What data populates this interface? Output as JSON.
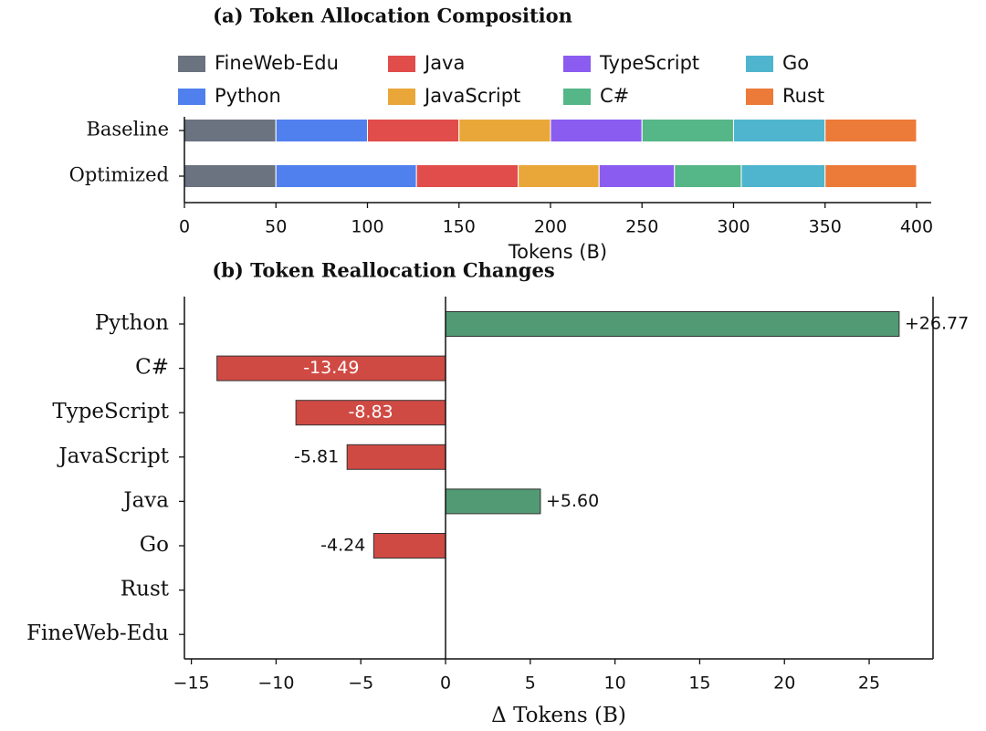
{
  "chart_data": [
    {
      "type": "bar",
      "orientation": "horizontal",
      "stacked": true,
      "title": "(a) Token Allocation Composition",
      "categories": [
        "Baseline",
        "Optimized"
      ],
      "series": [
        {
          "name": "FineWeb-Edu",
          "color": "#6b7280",
          "values": [
            50,
            50
          ]
        },
        {
          "name": "Python",
          "color": "#4f80ee",
          "values": [
            50,
            76.77
          ]
        },
        {
          "name": "Java",
          "color": "#e04d4b",
          "values": [
            50,
            55.6
          ]
        },
        {
          "name": "JavaScript",
          "color": "#e9a73a",
          "values": [
            50,
            44.19
          ]
        },
        {
          "name": "TypeScript",
          "color": "#8b5cf0",
          "values": [
            50,
            41.17
          ]
        },
        {
          "name": "C#",
          "color": "#55b687",
          "values": [
            50,
            36.51
          ]
        },
        {
          "name": "Go",
          "color": "#4fb5cf",
          "values": [
            50,
            45.76
          ]
        },
        {
          "name": "Rust",
          "color": "#ec7a38",
          "values": [
            50,
            50
          ]
        }
      ],
      "xlabel": "Tokens (B)",
      "xlim": [
        0,
        408
      ],
      "xticks": [
        0,
        50,
        100,
        150,
        200,
        250,
        300,
        350,
        400
      ],
      "legend": "top"
    },
    {
      "type": "bar",
      "orientation": "horizontal",
      "stacked": false,
      "title": "(b) Token Reallocation Changes",
      "categories": [
        "Python",
        "C#",
        "TypeScript",
        "JavaScript",
        "Java",
        "Go",
        "Rust",
        "FineWeb-Edu"
      ],
      "values": [
        26.77,
        -13.49,
        -8.83,
        -5.81,
        5.6,
        -4.24,
        0,
        0
      ],
      "value_labels": [
        "+26.77",
        "-13.49",
        "-8.83",
        "-5.81",
        "+5.60",
        "-4.24",
        null,
        null
      ],
      "positive_color": "#529a73",
      "negative_color": "#d04a44",
      "xlabel": "Δ Tokens (B)",
      "xlim": [
        -15.41,
        28.77
      ],
      "xticks": [
        {
          "value": -15,
          "label": "−15"
        },
        {
          "value": -10,
          "label": "−10"
        },
        {
          "value": -5,
          "label": "−5"
        },
        0,
        5,
        10,
        15,
        20,
        25
      ]
    }
  ]
}
